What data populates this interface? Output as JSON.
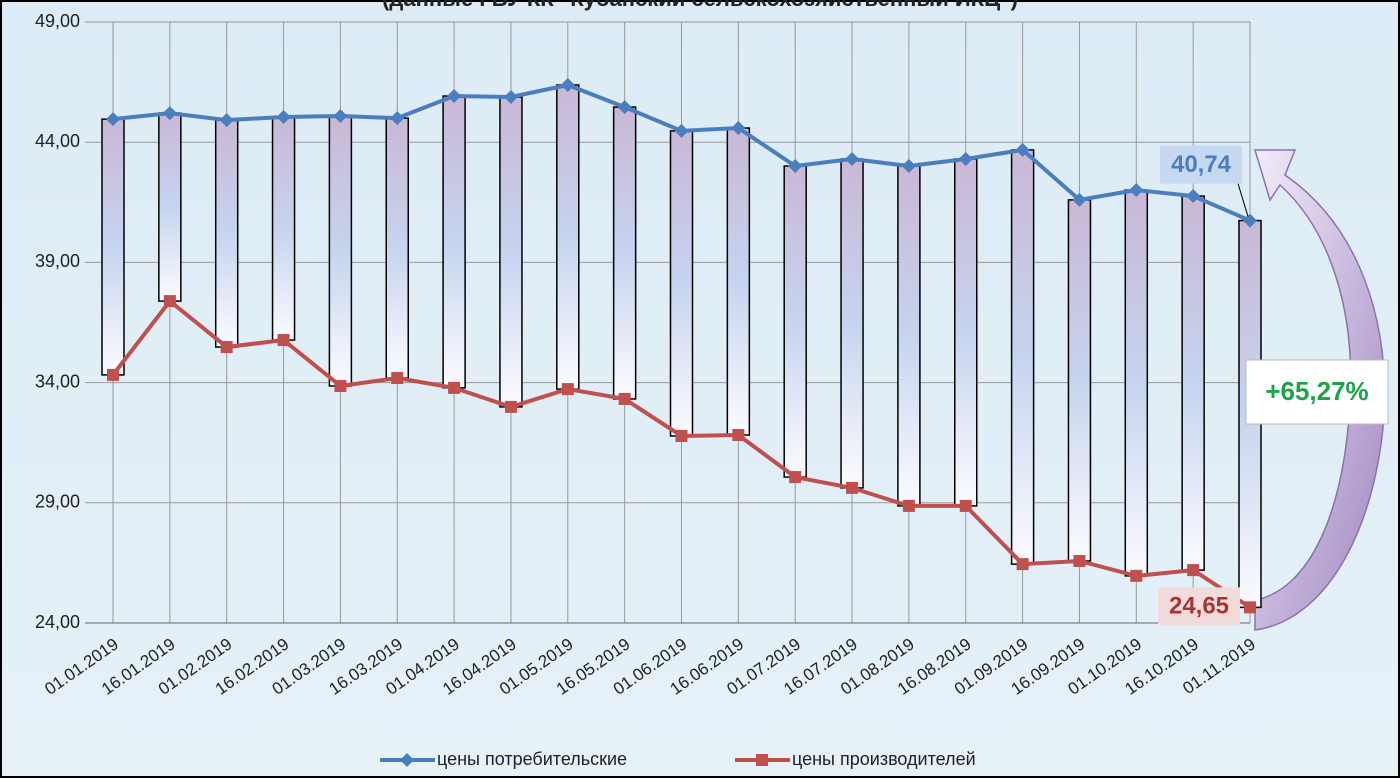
{
  "chart_data": {
    "type": "line",
    "title": "(данные ГБУ КК \"Кубанский сельскохозяйственный ИКЦ\")",
    "categories": [
      "01.01.2019",
      "16.01.2019",
      "01.02.2019",
      "16.02.2019",
      "01.03.2019",
      "16.03.2019",
      "01.04.2019",
      "16.04.2019",
      "01.05.2019",
      "16.05.2019",
      "01.06.2019",
      "16.06.2019",
      "01.07.2019",
      "16.07.2019",
      "01.08.2019",
      "16.08.2019",
      "01.09.2019",
      "16.09.2019",
      "01.10.2019",
      "16.10.2019",
      "01.11.2019"
    ],
    "series": [
      {
        "name": "цены потребительские",
        "color": "#4a7ebf",
        "values": [
          44.96,
          45.21,
          44.92,
          45.05,
          45.09,
          45.0,
          45.92,
          45.88,
          46.38,
          45.46,
          44.47,
          44.59,
          43.01,
          43.3,
          43.01,
          43.3,
          43.68,
          41.6,
          42.01,
          41.76,
          40.74
        ],
        "value_labels": [
          null,
          null,
          null,
          null,
          null,
          null,
          null,
          null,
          null,
          null,
          null,
          null,
          null,
          null,
          null,
          null,
          null,
          null,
          null,
          null,
          "40,74"
        ]
      },
      {
        "name": "цены производителей",
        "color": "#c0504d",
        "values": [
          34.32,
          37.39,
          35.48,
          35.77,
          33.86,
          34.19,
          33.78,
          32.99,
          33.73,
          33.32,
          31.78,
          31.82,
          30.07,
          29.62,
          28.87,
          28.87,
          26.45,
          26.58,
          25.96,
          26.2,
          24.65
        ],
        "value_labels": [
          null,
          null,
          null,
          null,
          null,
          null,
          null,
          null,
          null,
          null,
          null,
          null,
          null,
          null,
          null,
          null,
          null,
          null,
          null,
          null,
          "24,65"
        ]
      }
    ],
    "annotation": "+65,27%",
    "ylim": [
      24,
      49
    ],
    "yticks": [
      {
        "value": 24,
        "label": "24,00"
      },
      {
        "value": 29,
        "label": "29,00"
      },
      {
        "value": 34,
        "label": "34,00"
      },
      {
        "value": 39,
        "label": "39,00"
      },
      {
        "value": 44,
        "label": "44,00"
      },
      {
        "value": 49,
        "label": "49,00"
      }
    ],
    "grid": true,
    "up_down_bars": true,
    "legend": "bottom"
  }
}
